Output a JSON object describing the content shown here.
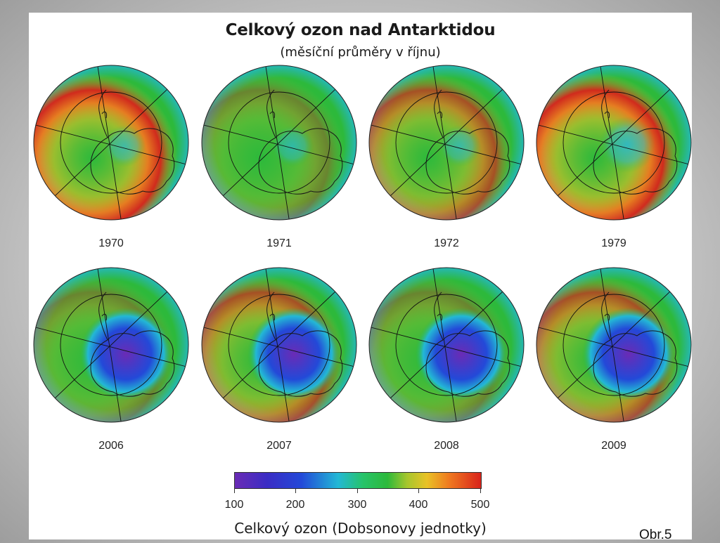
{
  "figure": {
    "title": "Celkový ozon nad Antarktidou",
    "subtitle": "(měsíční průměry v říjnu)",
    "reference": "Obr.5"
  },
  "maps": [
    {
      "year": "1970",
      "hole": "none",
      "ring": "strong"
    },
    {
      "year": "1971",
      "hole": "none",
      "ring": "weak"
    },
    {
      "year": "1972",
      "hole": "none",
      "ring": "medium"
    },
    {
      "year": "1979",
      "hole": "slight",
      "ring": "strong"
    },
    {
      "year": "2006",
      "hole": "large",
      "ring": "weak"
    },
    {
      "year": "2007",
      "hole": "large",
      "ring": "medium"
    },
    {
      "year": "2008",
      "hole": "large",
      "ring": "weak"
    },
    {
      "year": "2009",
      "hole": "large",
      "ring": "medium"
    }
  ],
  "colorbar": {
    "title": "Celkový ozon (Dobsonovy jednotky)",
    "ticks": [
      "100",
      "200",
      "300",
      "400",
      "500"
    ],
    "colors": {
      "v100": "#6a2bb5",
      "v200": "#2349d8",
      "v250": "#23b8d5",
      "v300": "#2db93b",
      "v350": "#a7c62d",
      "v400": "#e9c226",
      "v450": "#ef7a20",
      "v500": "#d9231b"
    }
  }
}
